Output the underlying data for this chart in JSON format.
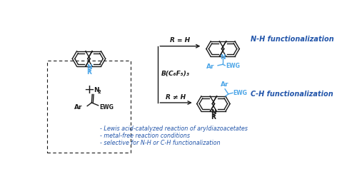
{
  "bg_color": "#ffffff",
  "blue_color": "#4da6e8",
  "dark_blue": "#2255aa",
  "black": "#1a1a1a",
  "bullet1": "- Lewis acid-catalyzed reaction of aryldiazoacetates",
  "bullet2": "- metal-free reaction conditions",
  "bullet3": "- selective for N-H or C-H functionalization",
  "label_nh": "N-H functionalization",
  "label_ch": "C-H functionalization",
  "catalyst": "B(C₆F₅)₃",
  "r_eq_h": "R = H",
  "r_neq_h": "R ≠ H"
}
